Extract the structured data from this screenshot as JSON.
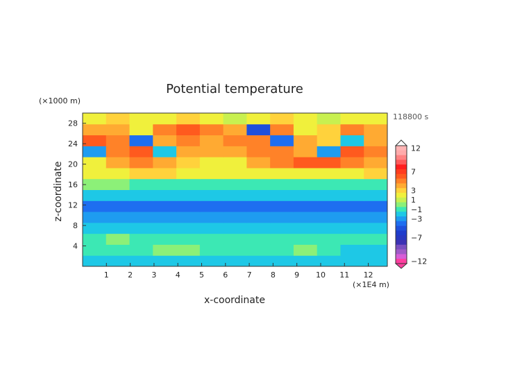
{
  "chart_data": {
    "type": "heatmap",
    "title": "Potential temperature",
    "time_label": "118800 s",
    "xlabel": "x-coordinate",
    "ylabel": "z-coordinate",
    "x_unit": "(×1E4 m)",
    "y_unit": "(×1000 m)",
    "xlim": [
      0,
      12.8
    ],
    "ylim": [
      0,
      30
    ],
    "x_ticks": [
      "1",
      "2",
      "3",
      "4",
      "5",
      "6",
      "7",
      "8",
      "9",
      "10",
      "11",
      "12"
    ],
    "y_ticks": [
      "4",
      "8",
      "12",
      "16",
      "20",
      "24",
      "28"
    ],
    "colorbar": {
      "levels": [
        -12,
        -11,
        -10,
        -9,
        -8,
        -7,
        -6,
        -5,
        -4,
        -3,
        -2,
        -1,
        0,
        1,
        2,
        3,
        4,
        5,
        6,
        7,
        8,
        9,
        10,
        11,
        12
      ],
      "labels": [
        "12",
        "7",
        "3",
        "1",
        "−1",
        "−3",
        "−7",
        "−12"
      ],
      "colors": [
        "#ff3fa0",
        "#d75ed7",
        "#a05ac8",
        "#7a4fc0",
        "#3c32b4",
        "#2838c0",
        "#1e3ccc",
        "#1e50dc",
        "#1e6ef0",
        "#1e9cf0",
        "#1ec8e6",
        "#3ce8b4",
        "#8cf078",
        "#c8f050",
        "#f0f03c",
        "#ffd23c",
        "#ffaa32",
        "#ff8228",
        "#ff5a1e",
        "#ff3c1e",
        "#ff1e1e",
        "#ff5a5a",
        "#ff8282",
        "#ffaaaa",
        "#ffb4b4"
      ],
      "extend": "both"
    },
    "z": [
      [
        -2,
        -2,
        -2,
        -2,
        -2,
        -2,
        -2,
        -2,
        -2,
        -2,
        -2,
        -2,
        -2
      ],
      [
        -1,
        -1,
        -1,
        0,
        0,
        -1,
        -1,
        -1,
        -1,
        0,
        -1,
        -2,
        -2
      ],
      [
        -1,
        0,
        -1,
        -1,
        -1,
        -1,
        -1,
        -1,
        -1,
        -1,
        -1,
        -1,
        -1
      ],
      [
        -2,
        -2,
        -2,
        -2,
        -2,
        -2,
        -2,
        -2,
        -2,
        -2,
        -2,
        -2,
        -2
      ],
      [
        -3,
        -3,
        -3,
        -3,
        -3,
        -3,
        -3,
        -3,
        -3,
        -3,
        -3,
        -3,
        -3
      ],
      [
        -4,
        -4,
        -4,
        -4,
        -4,
        -4,
        -4,
        -4,
        -4,
        -4,
        -4,
        -4,
        -4
      ],
      [
        -2,
        -2,
        -2,
        -2,
        -2,
        -2,
        -2,
        -2,
        -2,
        -2,
        -2,
        -2,
        -2
      ],
      [
        0,
        0,
        -1,
        -1,
        -1,
        -1,
        -1,
        -1,
        -1,
        -1,
        -1,
        -1,
        -1
      ],
      [
        2,
        2,
        3,
        3,
        2,
        2,
        2,
        2,
        2,
        2,
        2,
        2,
        3
      ],
      [
        2,
        4,
        5,
        4,
        3,
        2,
        2,
        4,
        5,
        6,
        6,
        5,
        4
      ],
      [
        -3,
        5,
        6,
        -2,
        4,
        4,
        4,
        5,
        5,
        4,
        -3,
        6,
        5
      ],
      [
        6,
        5,
        -4,
        4,
        5,
        4,
        5,
        5,
        -4,
        4,
        3,
        -2,
        4
      ],
      [
        4,
        4,
        2,
        5,
        6,
        5,
        4,
        -5,
        5,
        2,
        3,
        5,
        4
      ],
      [
        2,
        3,
        2,
        2,
        3,
        2,
        1,
        2,
        3,
        2,
        1,
        2,
        2
      ]
    ]
  }
}
